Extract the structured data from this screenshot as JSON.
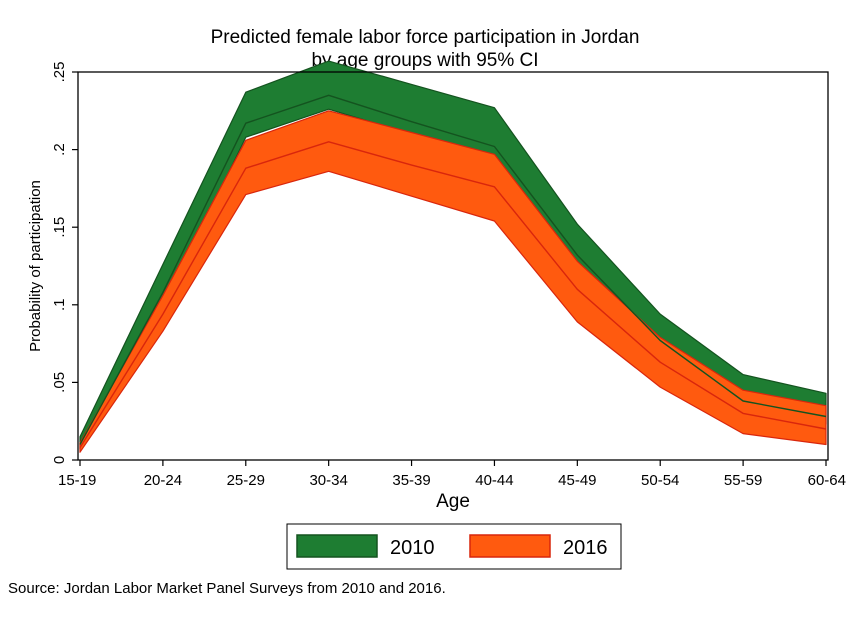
{
  "chart_data": {
    "type": "area",
    "title": "Predicted female labor force participation in Jordan",
    "subtitle": "by age groups with 95% CI",
    "xlabel": "Age",
    "ylabel": "Probability of participation",
    "categories": [
      "15-19",
      "20-24",
      "25-29",
      "30-34",
      "35-39",
      "40-44",
      "45-49",
      "50-54",
      "55-59",
      "60-64"
    ],
    "ylim": [
      0,
      0.25
    ],
    "yticks": [
      0,
      0.05,
      0.1,
      0.15,
      0.2,
      0.25
    ],
    "ytick_labels": [
      "0",
      ".05",
      ".1",
      ".15",
      ".2",
      ".25"
    ],
    "grid": false,
    "legend_position": "bottom",
    "series": [
      {
        "name": "2010",
        "color": "#1e7d32",
        "line_color": "#14531f",
        "estimate": [
          0.01,
          0.108,
          0.217,
          0.235,
          0.218,
          0.202,
          0.132,
          0.077,
          0.038,
          0.028
        ],
        "ci_lower": [
          0.007,
          0.098,
          0.208,
          0.226,
          0.21,
          0.195,
          0.124,
          0.072,
          0.033,
          0.023
        ],
        "ci_upper": [
          0.015,
          0.126,
          0.237,
          0.257,
          0.242,
          0.227,
          0.152,
          0.094,
          0.055,
          0.043
        ]
      },
      {
        "name": "2016",
        "color": "#ff5a0f",
        "line_color": "#d9260c",
        "estimate": [
          0.008,
          0.094,
          0.188,
          0.205,
          0.19,
          0.176,
          0.11,
          0.063,
          0.03,
          0.02
        ],
        "ci_lower": [
          0.005,
          0.083,
          0.171,
          0.186,
          0.17,
          0.154,
          0.089,
          0.047,
          0.017,
          0.01
        ],
        "ci_upper": [
          0.011,
          0.106,
          0.206,
          0.225,
          0.211,
          0.197,
          0.128,
          0.079,
          0.045,
          0.035
        ]
      }
    ]
  },
  "source_note": "Source: Jordan Labor Market Panel Surveys from 2010 and 2016."
}
